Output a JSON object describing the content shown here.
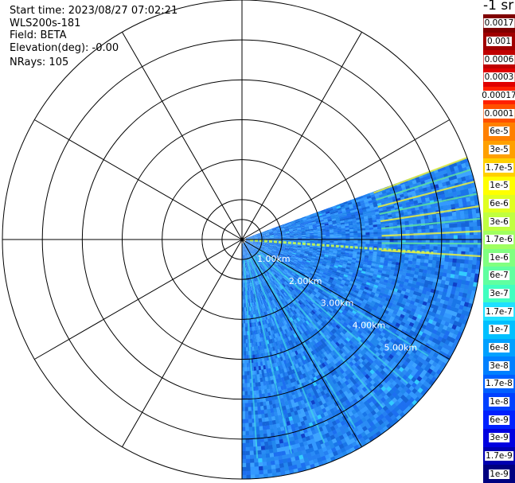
{
  "header": {
    "start_time": "Start time: 2023/08/27 07:02:21",
    "instrument": "WLS200s-181",
    "field": "Field: BETA",
    "elevation": "Elevation(deg): -0.00",
    "nrays": "NRays: 105"
  },
  "colorbar": {
    "units": "-1 sr",
    "labels": [
      "0.0017",
      "0.001",
      "0.0006",
      "0.0003",
      "0.00017",
      "0.0001",
      "6e-5",
      "3e-5",
      "1.7e-5",
      "1e-5",
      "6e-6",
      "3e-6",
      "1.7e-6",
      "1e-6",
      "6e-7",
      "3e-7",
      "1.7e-7",
      "1e-7",
      "6e-8",
      "3e-8",
      "1.7e-8",
      "1e-8",
      "6e-9",
      "3e-9",
      "1.7e-9",
      "1e-9"
    ],
    "colors": [
      "#800000",
      "#a00000",
      "#c00000",
      "#e00000",
      "#ff2000",
      "#ff5000",
      "#ff8000",
      "#ffa000",
      "#ffd000",
      "#ffff00",
      "#e0ff20",
      "#c0ff40",
      "#a0ff60",
      "#80ff80",
      "#60ffa0",
      "#40ffc0",
      "#20e0ff",
      "#00c0ff",
      "#00a0ff",
      "#0080ff",
      "#0060ff",
      "#0040ff",
      "#0020ff",
      "#0000e0",
      "#0000b0",
      "#000080"
    ]
  },
  "chart_data": {
    "type": "heatmap",
    "plot_kind": "polar PPI scan",
    "field": "BETA",
    "range_ring_labels": [
      "1.00km",
      "2.00km",
      "3.00km",
      "4.00km",
      "5.00km"
    ],
    "range_rings_km": [
      0.5,
      1,
      2,
      3,
      4,
      5,
      6
    ],
    "max_range_km": 6,
    "spoke_interval_deg": 30,
    "azimuth_sector_deg": [
      70,
      180
    ],
    "nrays": 105,
    "value_range": [
      1e-09,
      0.0017
    ],
    "dominant_value_band": "1e-8 to 1e-7",
    "features": [
      {
        "kind": "strong near-horizontal return line",
        "azimuth_deg": 94,
        "range_km": [
          0.2,
          4.8
        ],
        "band": "1.7e-6 to 1e-5"
      },
      {
        "kind": "strong return band at far range",
        "azimuth_deg_range": [
          70,
          95
        ],
        "range_km": [
          3.5,
          6
        ],
        "band": "6e-6 to 3e-5"
      },
      {
        "kind": "radial streaks",
        "azimuth_deg_range": [
          120,
          175
        ],
        "range_km": [
          0.5,
          5.5
        ],
        "band": "1e-7 to 6e-7"
      }
    ]
  }
}
